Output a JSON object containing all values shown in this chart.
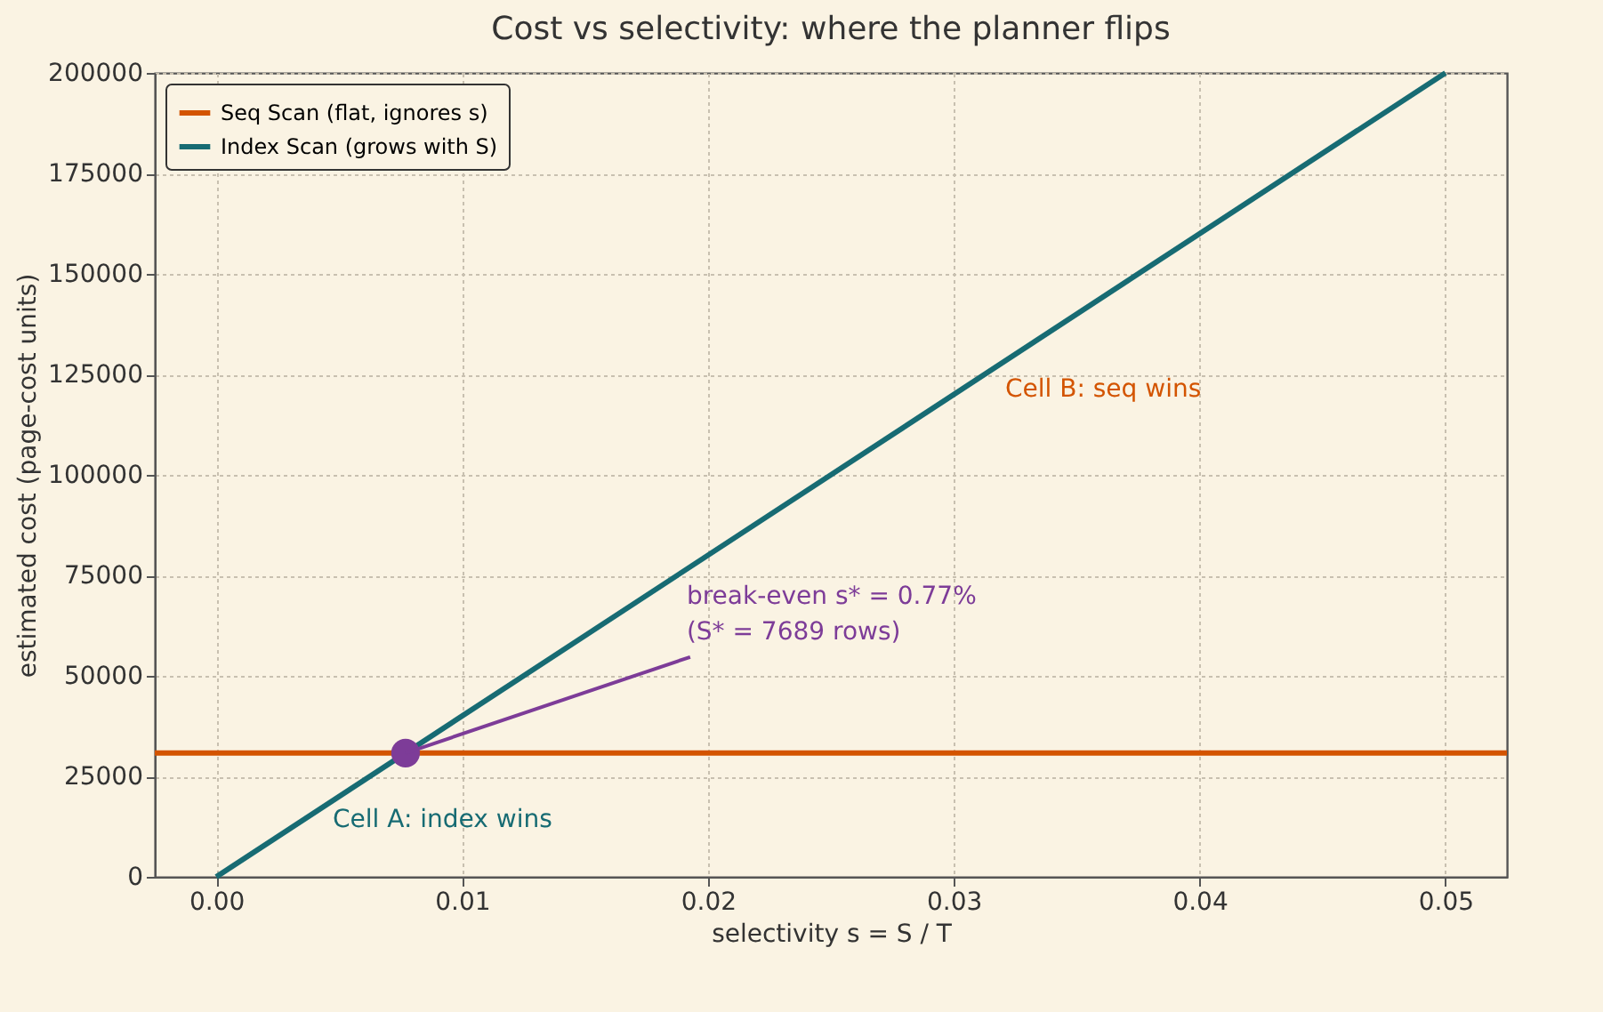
{
  "chart_data": {
    "type": "line",
    "title": "Cost vs selectivity: where the planner flips",
    "xlabel": "selectivity  s = S / T",
    "ylabel": "estimated cost (page-cost units)",
    "series": [
      {
        "name": "Seq Scan (flat, ignores s)",
        "color": "#d35400",
        "x": [
          -0.0025,
          0.0525
        ],
        "values": [
          30800,
          30800
        ]
      },
      {
        "name": "Index Scan (grows with S)",
        "color": "#176b73",
        "x": [
          0,
          0.05
        ],
        "values": [
          0,
          200000
        ]
      },
      {
        "type": "scatter",
        "color": "#7d3c98",
        "x": [
          0.0077
        ],
        "values": [
          30800
        ]
      }
    ],
    "annotations": [
      {
        "text": "break-even  s* = 0.77%\n(S* = 7689 rows)",
        "x": 0.0077,
        "y": 30800
      },
      "Cell A: index wins",
      "Cell B: seq wins"
    ],
    "xlim": [
      -0.0025,
      0.0525
    ],
    "ylim": [
      0,
      200000
    ],
    "xticks": [
      {
        "value": 0,
        "label": "0.00"
      },
      {
        "value": 0.01,
        "label": "0.01"
      },
      {
        "value": 0.02,
        "label": "0.02"
      },
      {
        "value": 0.03,
        "label": "0.03"
      },
      {
        "value": 0.04,
        "label": "0.04"
      },
      {
        "value": 0.05,
        "label": "0.05"
      }
    ],
    "yticks": [
      0,
      25000,
      50000,
      75000,
      100000,
      125000,
      150000,
      175000,
      200000
    ],
    "grid": true,
    "legend": "top left",
    "line_style": "solid"
  }
}
